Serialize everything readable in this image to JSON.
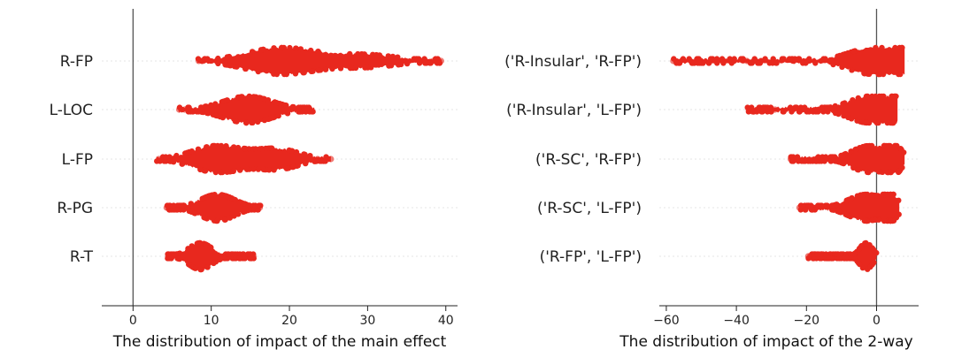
{
  "chart_data": [
    {
      "type": "swarm",
      "xlabel": "The distribution of impact of the main effect",
      "xlim": [
        -4,
        41.5
      ],
      "xticks": [
        0,
        10,
        20,
        30,
        40
      ],
      "zero_line": true,
      "grid": "horizontal-dotted",
      "color": "#e8281e",
      "categories": [
        "R-FP",
        "L-LOC",
        "L-FP",
        "R-PG",
        "R-T"
      ],
      "series": [
        {
          "category": "R-FP",
          "min": 8.2,
          "max": 39.5,
          "peaks": [
            {
              "center": 19,
              "width": 4.5,
              "weight": 1.0
            },
            {
              "center": 30,
              "width": 4,
              "weight": 0.45
            }
          ],
          "outliers": [
            8.4,
            8.9,
            38.4,
            39.4
          ]
        },
        {
          "category": "L-LOC",
          "min": 5.8,
          "max": 23.2,
          "peaks": [
            {
              "center": 14.7,
              "width": 3.2,
              "weight": 1.0
            }
          ],
          "outliers": [
            5.9,
            6.6
          ]
        },
        {
          "category": "L-FP",
          "min": 3.0,
          "max": 25.3,
          "peaks": [
            {
              "center": 10.8,
              "width": 3.2,
              "weight": 1.0
            },
            {
              "center": 18.5,
              "width": 2.8,
              "weight": 0.75
            }
          ],
          "outliers": [
            3.3,
            4.3,
            23.6,
            25.3
          ]
        },
        {
          "category": "R-PG",
          "min": 4.2,
          "max": 16.3,
          "peaks": [
            {
              "center": 10.8,
              "width": 2.2,
              "weight": 1.0
            }
          ],
          "outliers": [
            4.3,
            15.4,
            16.2
          ]
        },
        {
          "category": "R-T",
          "min": 4.4,
          "max": 15.5,
          "peaks": [
            {
              "center": 8.6,
              "width": 1.5,
              "weight": 1.0
            }
          ],
          "outliers": [
            4.5,
            15.4
          ]
        }
      ]
    },
    {
      "type": "swarm",
      "xlabel": "The distribution of impact of the 2-way",
      "xlim": [
        -62,
        12
      ],
      "xticks": [
        -60,
        -40,
        -20,
        0
      ],
      "zero_line": true,
      "grid": "horizontal-dotted",
      "color": "#e8281e",
      "categories": [
        "('R-Insular', 'R-FP')",
        "('R-Insular', 'L-FP')",
        "('R-SC', 'R-FP')",
        "('R-SC', 'L-FP')",
        "('R-FP', 'L-FP')"
      ],
      "series": [
        {
          "category": "('R-Insular', 'R-FP')",
          "min": -58,
          "max": 8,
          "peaks": [
            {
              "center": -1,
              "width": 7,
              "weight": 1.0
            },
            {
              "center": 6,
              "width": 2,
              "weight": 0.9
            }
          ],
          "outliers": [
            -58,
            -51.5,
            -37,
            -35,
            -33
          ]
        },
        {
          "category": "('R-Insular', 'L-FP')",
          "min": -37,
          "max": 6,
          "peaks": [
            {
              "center": -2,
              "width": 6,
              "weight": 1.0
            },
            {
              "center": 4,
              "width": 2,
              "weight": 0.8
            }
          ],
          "outliers": [
            -36.5,
            -35.8,
            -32,
            -29
          ]
        },
        {
          "category": "('R-SC', 'R-FP')",
          "min": -25,
          "max": 8,
          "peaks": [
            {
              "center": -2,
              "width": 5,
              "weight": 1.0
            },
            {
              "center": 5,
              "width": 2,
              "weight": 0.9
            }
          ],
          "outliers": [
            -24.5
          ]
        },
        {
          "category": "('R-SC', 'L-FP')",
          "min": -22,
          "max": 6.5,
          "peaks": [
            {
              "center": -3,
              "width": 5,
              "weight": 1.0
            },
            {
              "center": 4,
              "width": 1.8,
              "weight": 0.8
            }
          ],
          "outliers": [
            -22
          ]
        },
        {
          "category": "('R-FP', 'L-FP')",
          "min": -19.5,
          "max": 0,
          "peaks": [
            {
              "center": -3,
              "width": 1.8,
              "weight": 1.0
            }
          ],
          "outliers": [
            -19.5,
            -19
          ]
        }
      ]
    }
  ]
}
